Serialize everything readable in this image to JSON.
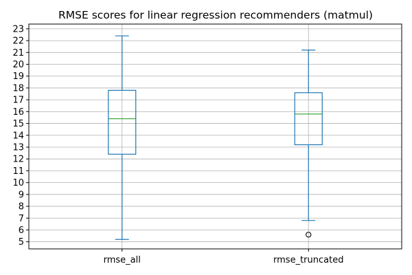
{
  "chart_data": {
    "type": "box",
    "title": "RMSE scores for linear regression recommenders (matmul)",
    "xlabel": "",
    "ylabel": "",
    "categories": [
      "rmse_all",
      "rmse_truncated"
    ],
    "boxes": [
      {
        "name": "rmse_all",
        "whisker_low": 5.2,
        "q1": 12.4,
        "median": 15.4,
        "q3": 17.8,
        "whisker_high": 22.4,
        "outliers": []
      },
      {
        "name": "rmse_truncated",
        "whisker_low": 6.8,
        "q1": 13.2,
        "median": 15.8,
        "q3": 17.6,
        "whisker_high": 21.2,
        "outliers": [
          5.6
        ]
      }
    ],
    "ylim": [
      4.4,
      23.4
    ],
    "yticks": [
      "5",
      "6",
      "7",
      "8",
      "9",
      "10",
      "11",
      "12",
      "13",
      "14",
      "15",
      "16",
      "17",
      "18",
      "19",
      "20",
      "21",
      "22",
      "23"
    ],
    "grid": true,
    "colors": {
      "box": "#1f77b4",
      "median": "#2ca02c",
      "grid": "#b0b0b0",
      "axes": "#000000",
      "outlier": "#000000"
    }
  }
}
